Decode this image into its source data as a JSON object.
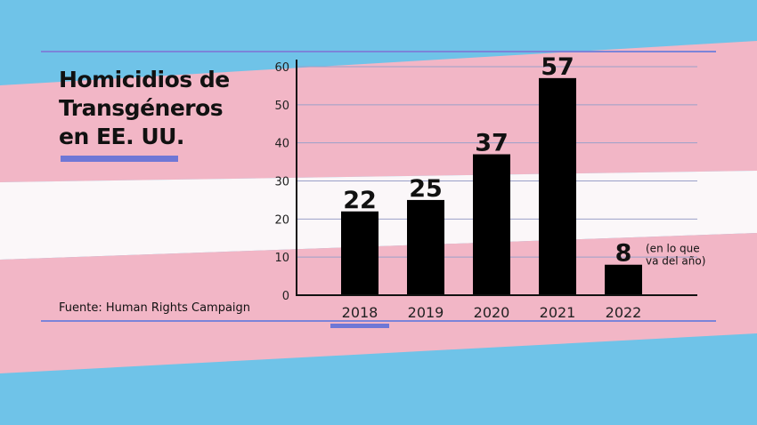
{
  "colors": {
    "stripe_blue": "#6fc3e8",
    "stripe_pink": "#f2b6c6",
    "stripe_white": "#fbf7f9",
    "bar": "#000000",
    "accent": "#6f77d6"
  },
  "title_lines": [
    "Homicidios de",
    "Transgéneros",
    "en EE. UU."
  ],
  "source": "Fuente: Human Rights Campaign",
  "chart_data": {
    "type": "bar",
    "title": "Homicidios de Transgéneros en EE. UU.",
    "categories": [
      "2018",
      "2019",
      "2020",
      "2021",
      "2022"
    ],
    "values": [
      22,
      25,
      37,
      57,
      8
    ],
    "value_labels": [
      "22",
      "25",
      "37",
      "57",
      "8"
    ],
    "annotation": {
      "category": "2022",
      "lines": [
        "(en lo que",
        "va del año)"
      ]
    },
    "yticks": [
      0,
      10,
      20,
      30,
      40,
      50,
      60
    ],
    "ylim": [
      0,
      60
    ],
    "xlabel": "",
    "ylabel": "",
    "grid": true,
    "highlighted_category": "2018"
  }
}
